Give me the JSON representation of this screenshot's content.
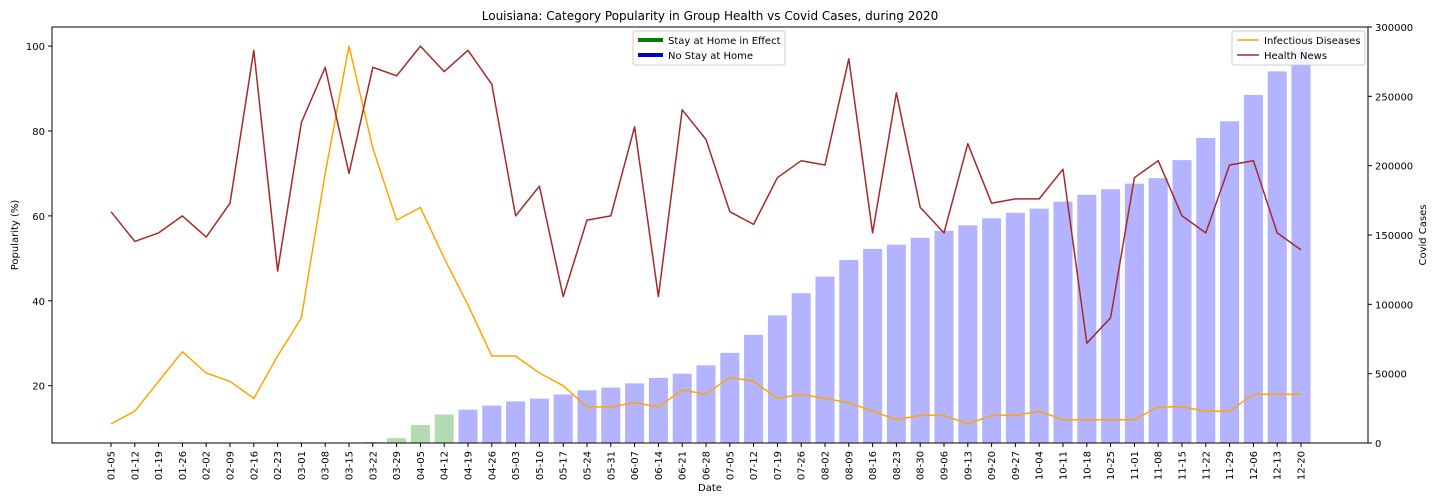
{
  "chart_data": {
    "type": "bar+line",
    "title": "Louisiana: Category Popularity in Group Health vs Covid Cases, during 2020",
    "xlabel": "Date",
    "ylabel_left": "Popularity (%)",
    "ylabel_right": "Covid Cases",
    "categories": [
      "01-05",
      "01-12",
      "01-19",
      "01-26",
      "02-02",
      "02-09",
      "02-16",
      "02-23",
      "03-01",
      "03-08",
      "03-15",
      "03-22",
      "03-29",
      "04-05",
      "04-12",
      "04-19",
      "04-26",
      "05-03",
      "05-10",
      "05-17",
      "05-24",
      "05-31",
      "06-07",
      "06-14",
      "06-21",
      "06-28",
      "07-05",
      "07-12",
      "07-19",
      "07-26",
      "08-02",
      "08-09",
      "08-16",
      "08-23",
      "08-30",
      "09-06",
      "09-13",
      "09-20",
      "09-27",
      "10-04",
      "10-11",
      "10-18",
      "10-25",
      "11-01",
      "11-08",
      "11-15",
      "11-22",
      "11-29",
      "12-06",
      "12-13",
      "12-20"
    ],
    "left_axis": {
      "ticks": [
        20,
        40,
        60,
        80,
        100
      ],
      "ylim": [
        6.5,
        104.5
      ]
    },
    "right_axis": {
      "ticks": [
        0,
        50000,
        100000,
        150000,
        200000,
        250000,
        300000
      ],
      "ylim": [
        0,
        300000
      ]
    },
    "bars": {
      "name": "Covid Cases",
      "values": [
        0,
        0,
        0,
        0,
        0,
        0,
        0,
        0,
        0,
        0,
        0,
        600,
        3500,
        13000,
        20500,
        24000,
        27000,
        30000,
        32000,
        35000,
        38000,
        40000,
        43000,
        47000,
        50000,
        56000,
        65000,
        78000,
        92000,
        108000,
        120000,
        132000,
        140000,
        143000,
        148000,
        153000,
        157000,
        162000,
        166000,
        169000,
        174000,
        179000,
        183000,
        187000,
        191000,
        204000,
        220000,
        232000,
        251000,
        268000,
        285000
      ],
      "stay_at_home": [
        false,
        false,
        false,
        false,
        false,
        false,
        false,
        false,
        false,
        false,
        false,
        true,
        true,
        true,
        true,
        false,
        false,
        false,
        false,
        false,
        false,
        false,
        false,
        false,
        false,
        false,
        false,
        false,
        false,
        false,
        false,
        false,
        false,
        false,
        false,
        false,
        false,
        false,
        false,
        false,
        false,
        false,
        false,
        false,
        false,
        false,
        false,
        false,
        false,
        false,
        false
      ]
    },
    "series": [
      {
        "name": "Infectious Diseases",
        "color": "#ffa500",
        "values": [
          11,
          14,
          21,
          28,
          23,
          21,
          17,
          27,
          36,
          70,
          100,
          76,
          59,
          62,
          50,
          39,
          27,
          27,
          23,
          20,
          15,
          15,
          16,
          15,
          19,
          18,
          22,
          21,
          17,
          18,
          17,
          16,
          14,
          12,
          13,
          13,
          11,
          13,
          13,
          14,
          12,
          12,
          12,
          12,
          15,
          15,
          14,
          14,
          18,
          18,
          18
        ]
      },
      {
        "name": "Health News",
        "color": "#a52a2a",
        "values": [
          61,
          54,
          56,
          60,
          55,
          63,
          99,
          47,
          82,
          95,
          70,
          95,
          93,
          100,
          94,
          99,
          91,
          60,
          67,
          41,
          59,
          60,
          81,
          41,
          85,
          78,
          61,
          58,
          69,
          73,
          72,
          97,
          56,
          89,
          62,
          56,
          77,
          63,
          64,
          64,
          71,
          30,
          36,
          69,
          73,
          60,
          56,
          72,
          73,
          56,
          52
        ]
      }
    ],
    "legends": {
      "center": [
        {
          "label": "Stay at Home in Effect",
          "color": "#008000"
        },
        {
          "label": "No Stay at Home",
          "color": "#0000cd"
        }
      ],
      "right": [
        "Infectious Diseases",
        "Health News"
      ]
    },
    "colors": {
      "bar_default": "#b3b3ff",
      "bar_stay_home": "#b2dbb2",
      "infectious": "#ffa500",
      "health": "#a52a2a"
    }
  }
}
